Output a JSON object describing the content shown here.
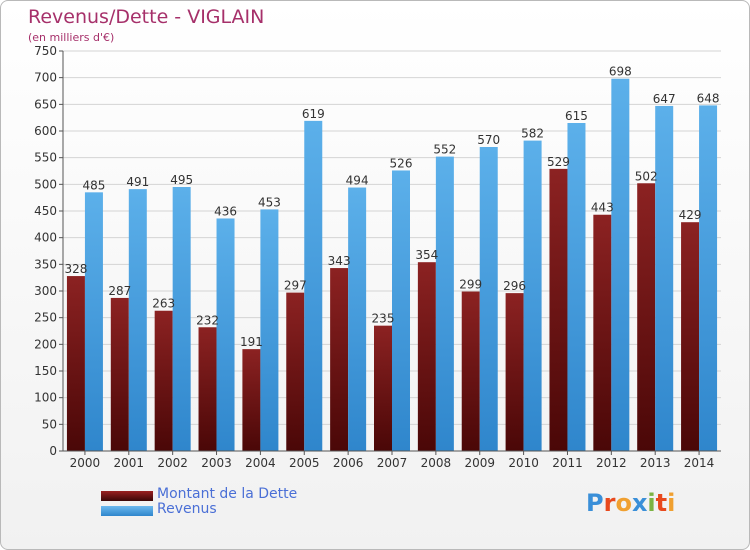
{
  "header": {
    "title": "Revenus/Dette - VIGLAIN",
    "subtitle": "(en milliers d'€)"
  },
  "colors": {
    "dette": "#7a1515",
    "revenus": "#4aa3e4",
    "axis_text": "#333333",
    "title": "#a6306a",
    "grid": "#d4d4d4"
  },
  "chart_data": {
    "type": "bar",
    "categories": [
      "2000",
      "2001",
      "2002",
      "2003",
      "2004",
      "2005",
      "2006",
      "2007",
      "2008",
      "2009",
      "2010",
      "2011",
      "2012",
      "2013",
      "2014"
    ],
    "series": [
      {
        "name": "Montant de la Dette",
        "values": [
          328,
          287,
          263,
          232,
          191,
          297,
          343,
          235,
          354,
          299,
          296,
          529,
          443,
          502,
          429
        ],
        "labels": [
          "328",
          "287",
          "263",
          "232",
          "191",
          "297",
          "343",
          "235",
          "354",
          "299",
          "296",
          "529",
          "443",
          "502",
          "429"
        ]
      },
      {
        "name": "Revenus",
        "values": [
          485,
          491,
          495,
          436,
          453,
          619,
          494,
          526,
          552,
          570,
          582,
          615,
          698,
          647,
          648
        ],
        "labels": [
          "485",
          "491",
          "495",
          "436",
          "453",
          "619",
          "494",
          "526",
          "552",
          "570",
          "582",
          "615",
          "698",
          "647",
          "648"
        ]
      }
    ],
    "title": "Revenus/Dette - VIGLAIN",
    "ylabel": "(en milliers d'€)",
    "ylim": [
      0,
      750
    ],
    "yticks": [
      "0",
      "50",
      "100",
      "150",
      "200",
      "250",
      "300",
      "350",
      "400",
      "450",
      "500",
      "550",
      "600",
      "650",
      "700",
      "750"
    ],
    "grid": true,
    "legend": "bottom-left"
  },
  "legend": {
    "items": [
      {
        "label": "Montant de la Dette"
      },
      {
        "label": "Revenus"
      }
    ]
  },
  "logo": {
    "text": "Proxiti",
    "letters": [
      "P",
      "r",
      "o",
      "x",
      "i",
      "t",
      "i"
    ],
    "colors": [
      "#3a8fd8",
      "#e8491d",
      "#f0a030",
      "#3a8fd8",
      "#7cb342",
      "#e8491d",
      "#f0a030"
    ]
  }
}
